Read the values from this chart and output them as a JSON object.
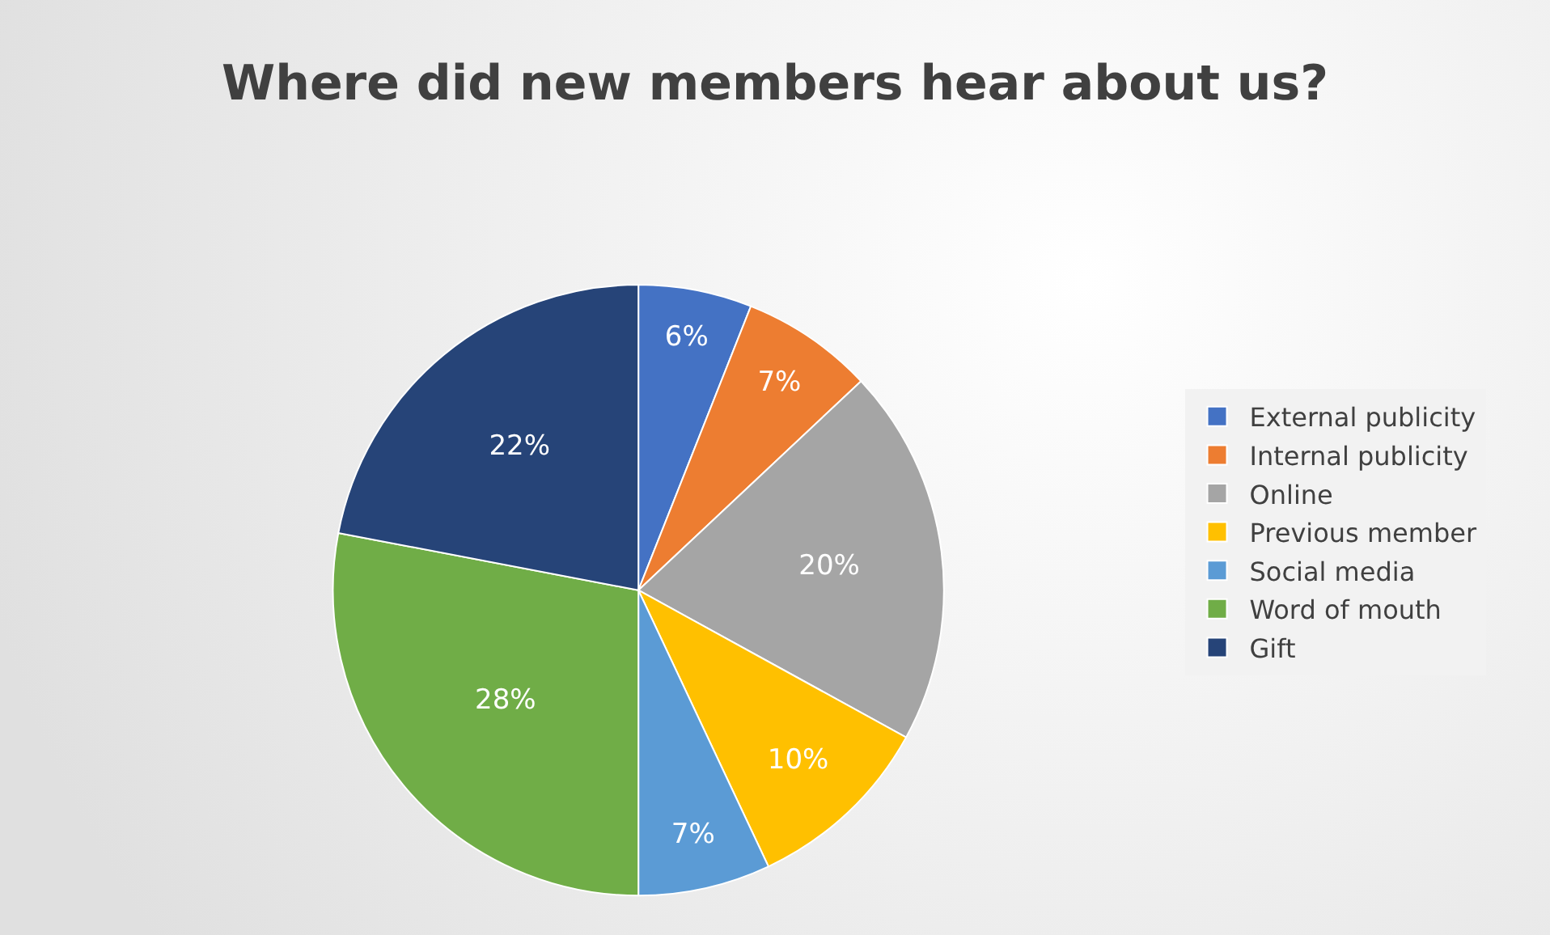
{
  "chart_data": {
    "type": "pie",
    "title": "Where did new members hear about us?",
    "categories": [
      "External publicity",
      "Internal publicity",
      "Online",
      "Previous member",
      "Social media",
      "Word of mouth",
      "Gift"
    ],
    "values": [
      6,
      7,
      20,
      10,
      7,
      28,
      22
    ],
    "value_labels": [
      "6%",
      "7%",
      "20%",
      "10%",
      "7%",
      "28%",
      "22%"
    ],
    "colors": [
      "#4472c4",
      "#ed7d31",
      "#a5a5a5",
      "#ffc000",
      "#5b9bd5",
      "#70ad47",
      "#264478"
    ],
    "legend": "right"
  }
}
